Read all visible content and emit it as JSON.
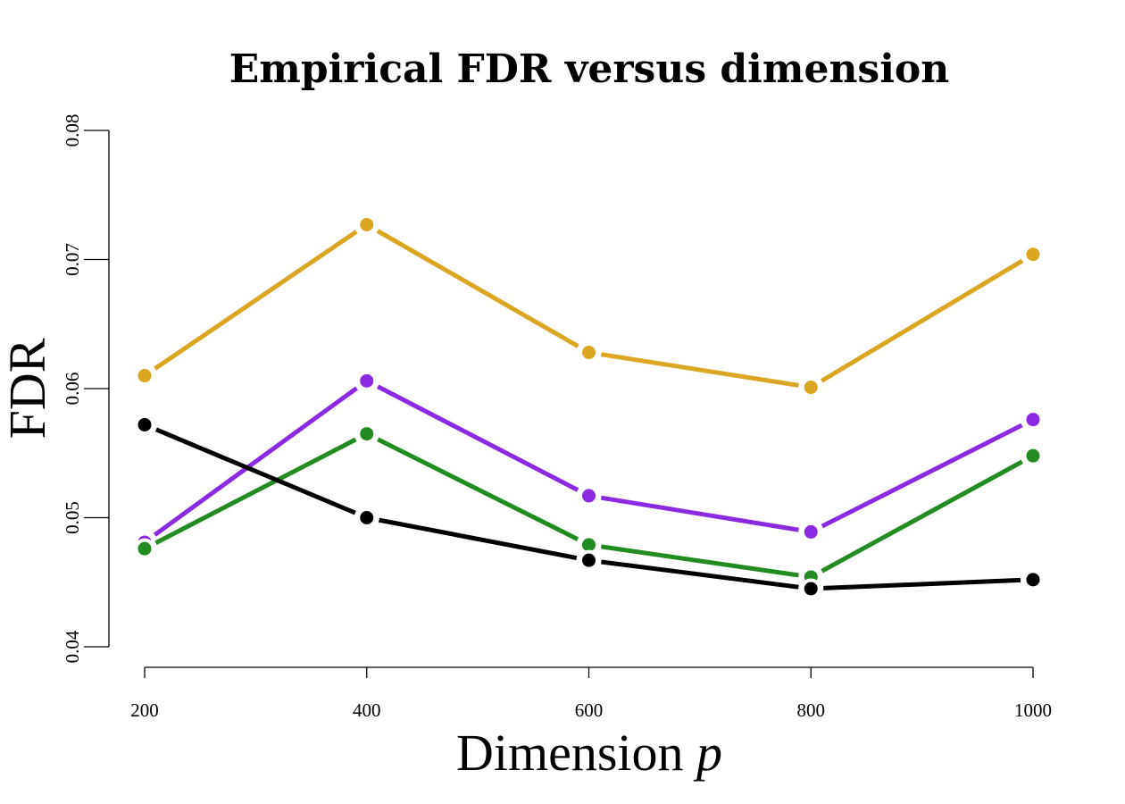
{
  "chart_data": {
    "type": "line",
    "title": "Empirical FDR versus dimension",
    "xlabel": "Dimension",
    "xlabel_var": "p",
    "ylabel": "FDR",
    "x": [
      200,
      400,
      600,
      800,
      1000
    ],
    "xticks": [
      "200",
      "400",
      "600",
      "800",
      "1000"
    ],
    "yticks": [
      "0.04",
      "0.05",
      "0.06",
      "0.07",
      "0.08"
    ],
    "ytick_values": [
      0.04,
      0.05,
      0.06,
      0.07,
      0.08
    ],
    "xlim": [
      200,
      1000
    ],
    "ylim": [
      0.04,
      0.08
    ],
    "grid": false,
    "legend": "none",
    "series": [
      {
        "color": "#DAA520",
        "values": [
          0.061,
          0.0727,
          0.0628,
          0.0601,
          0.0704
        ]
      },
      {
        "color": "#8A2BE2",
        "values": [
          0.0481,
          0.0606,
          0.0517,
          0.0489,
          0.0576
        ]
      },
      {
        "color": "#228B22",
        "values": [
          0.0476,
          0.0565,
          0.0479,
          0.0454,
          0.0548
        ]
      },
      {
        "color": "#000000",
        "values": [
          0.0572,
          0.05,
          0.0467,
          0.0445,
          0.0452
        ]
      }
    ]
  }
}
